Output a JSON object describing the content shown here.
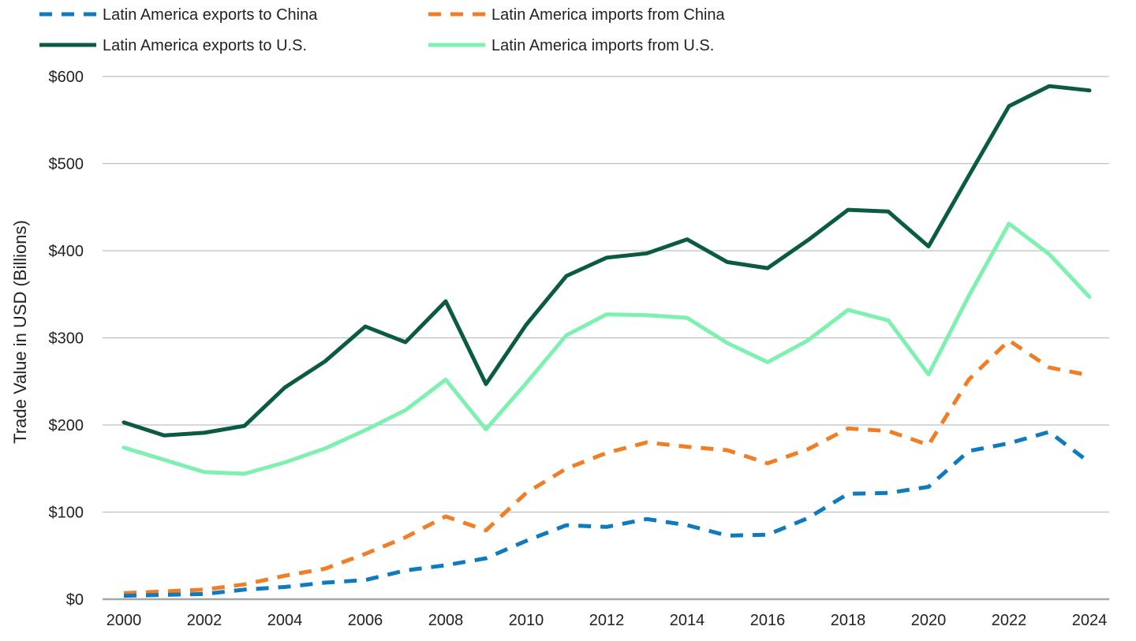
{
  "chart_data": {
    "type": "line",
    "title": "",
    "xlabel": "",
    "ylabel": "Trade Value in USD (Billions)",
    "ylim": [
      0,
      600
    ],
    "y_ticks": [
      {
        "value": 0,
        "label": "$0"
      },
      {
        "value": 100,
        "label": "$100"
      },
      {
        "value": 200,
        "label": "$200"
      },
      {
        "value": 300,
        "label": "$300"
      },
      {
        "value": 400,
        "label": "$400"
      },
      {
        "value": 500,
        "label": "$500"
      },
      {
        "value": 600,
        "label": "$600"
      }
    ],
    "x": [
      2000,
      2001,
      2002,
      2003,
      2004,
      2005,
      2006,
      2007,
      2008,
      2009,
      2010,
      2011,
      2012,
      2013,
      2014,
      2015,
      2016,
      2017,
      2018,
      2019,
      2020,
      2021,
      2022,
      2023,
      2024
    ],
    "x_tick_labels": [
      "2000",
      "2002",
      "2004",
      "2006",
      "2008",
      "2010",
      "2012",
      "2014",
      "2016",
      "2018",
      "2020",
      "2022",
      "2024"
    ],
    "grid": true,
    "legend_position": "top",
    "series": [
      {
        "name": "Latin America exports to China",
        "color": "#0e7bbf",
        "dash": true,
        "values": [
          4,
          5,
          6,
          11,
          14,
          19,
          22,
          33,
          39,
          47,
          67,
          85,
          83,
          92,
          85,
          73,
          74,
          93,
          121,
          122,
          129,
          170,
          179,
          192,
          157
        ]
      },
      {
        "name": "Latin America imports from China",
        "color": "#f07e26",
        "dash": true,
        "values": [
          7,
          9,
          11,
          17,
          27,
          35,
          52,
          71,
          95,
          79,
          122,
          150,
          168,
          180,
          175,
          171,
          156,
          172,
          196,
          193,
          177,
          252,
          297,
          266,
          257
        ]
      },
      {
        "name": "Latin America exports to U.S.",
        "color": "#0a5a44",
        "dash": false,
        "values": [
          203,
          188,
          191,
          199,
          243,
          273,
          313,
          295,
          342,
          247,
          315,
          371,
          392,
          397,
          413,
          387,
          380,
          412,
          447,
          445,
          405,
          486,
          566,
          589,
          584
        ]
      },
      {
        "name": "Latin America imports from U.S.",
        "color": "#7ef0b0",
        "dash": false,
        "values": [
          174,
          160,
          146,
          144,
          157,
          173,
          194,
          217,
          252,
          195,
          248,
          303,
          327,
          326,
          323,
          294,
          272,
          297,
          332,
          320,
          258,
          348,
          431,
          396,
          347
        ]
      }
    ]
  }
}
